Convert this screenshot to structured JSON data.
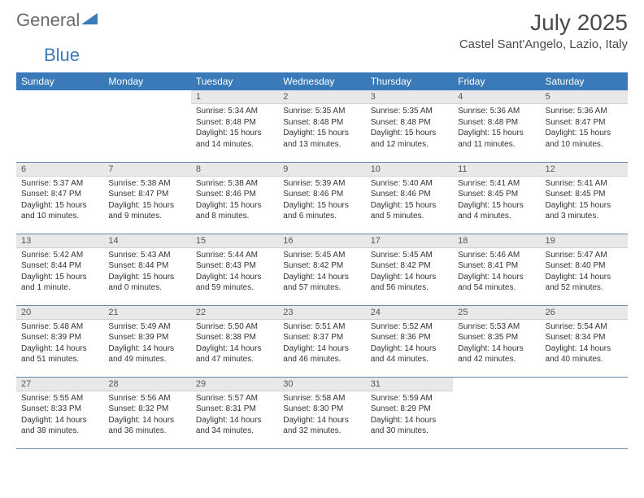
{
  "logo": {
    "text1": "General",
    "text2": "Blue"
  },
  "title": "July 2025",
  "location": "Castel Sant'Angelo, Lazio, Italy",
  "colors": {
    "header_bg": "#3a7ab8",
    "header_fg": "#ffffff",
    "daynum_bg": "#e8e8e8",
    "row_border": "#6b8aa8",
    "text": "#333333",
    "title_color": "#4a4a4a",
    "logo_gray": "#6b6b6b",
    "logo_blue": "#3a7ab8"
  },
  "weekdays": [
    "Sunday",
    "Monday",
    "Tuesday",
    "Wednesday",
    "Thursday",
    "Friday",
    "Saturday"
  ],
  "first_weekday_index": 2,
  "days": [
    {
      "n": 1,
      "sunrise": "5:34 AM",
      "sunset": "8:48 PM",
      "daylight": "15 hours and 14 minutes."
    },
    {
      "n": 2,
      "sunrise": "5:35 AM",
      "sunset": "8:48 PM",
      "daylight": "15 hours and 13 minutes."
    },
    {
      "n": 3,
      "sunrise": "5:35 AM",
      "sunset": "8:48 PM",
      "daylight": "15 hours and 12 minutes."
    },
    {
      "n": 4,
      "sunrise": "5:36 AM",
      "sunset": "8:48 PM",
      "daylight": "15 hours and 11 minutes."
    },
    {
      "n": 5,
      "sunrise": "5:36 AM",
      "sunset": "8:47 PM",
      "daylight": "15 hours and 10 minutes."
    },
    {
      "n": 6,
      "sunrise": "5:37 AM",
      "sunset": "8:47 PM",
      "daylight": "15 hours and 10 minutes."
    },
    {
      "n": 7,
      "sunrise": "5:38 AM",
      "sunset": "8:47 PM",
      "daylight": "15 hours and 9 minutes."
    },
    {
      "n": 8,
      "sunrise": "5:38 AM",
      "sunset": "8:46 PM",
      "daylight": "15 hours and 8 minutes."
    },
    {
      "n": 9,
      "sunrise": "5:39 AM",
      "sunset": "8:46 PM",
      "daylight": "15 hours and 6 minutes."
    },
    {
      "n": 10,
      "sunrise": "5:40 AM",
      "sunset": "8:46 PM",
      "daylight": "15 hours and 5 minutes."
    },
    {
      "n": 11,
      "sunrise": "5:41 AM",
      "sunset": "8:45 PM",
      "daylight": "15 hours and 4 minutes."
    },
    {
      "n": 12,
      "sunrise": "5:41 AM",
      "sunset": "8:45 PM",
      "daylight": "15 hours and 3 minutes."
    },
    {
      "n": 13,
      "sunrise": "5:42 AM",
      "sunset": "8:44 PM",
      "daylight": "15 hours and 1 minute."
    },
    {
      "n": 14,
      "sunrise": "5:43 AM",
      "sunset": "8:44 PM",
      "daylight": "15 hours and 0 minutes."
    },
    {
      "n": 15,
      "sunrise": "5:44 AM",
      "sunset": "8:43 PM",
      "daylight": "14 hours and 59 minutes."
    },
    {
      "n": 16,
      "sunrise": "5:45 AM",
      "sunset": "8:42 PM",
      "daylight": "14 hours and 57 minutes."
    },
    {
      "n": 17,
      "sunrise": "5:45 AM",
      "sunset": "8:42 PM",
      "daylight": "14 hours and 56 minutes."
    },
    {
      "n": 18,
      "sunrise": "5:46 AM",
      "sunset": "8:41 PM",
      "daylight": "14 hours and 54 minutes."
    },
    {
      "n": 19,
      "sunrise": "5:47 AM",
      "sunset": "8:40 PM",
      "daylight": "14 hours and 52 minutes."
    },
    {
      "n": 20,
      "sunrise": "5:48 AM",
      "sunset": "8:39 PM",
      "daylight": "14 hours and 51 minutes."
    },
    {
      "n": 21,
      "sunrise": "5:49 AM",
      "sunset": "8:39 PM",
      "daylight": "14 hours and 49 minutes."
    },
    {
      "n": 22,
      "sunrise": "5:50 AM",
      "sunset": "8:38 PM",
      "daylight": "14 hours and 47 minutes."
    },
    {
      "n": 23,
      "sunrise": "5:51 AM",
      "sunset": "8:37 PM",
      "daylight": "14 hours and 46 minutes."
    },
    {
      "n": 24,
      "sunrise": "5:52 AM",
      "sunset": "8:36 PM",
      "daylight": "14 hours and 44 minutes."
    },
    {
      "n": 25,
      "sunrise": "5:53 AM",
      "sunset": "8:35 PM",
      "daylight": "14 hours and 42 minutes."
    },
    {
      "n": 26,
      "sunrise": "5:54 AM",
      "sunset": "8:34 PM",
      "daylight": "14 hours and 40 minutes."
    },
    {
      "n": 27,
      "sunrise": "5:55 AM",
      "sunset": "8:33 PM",
      "daylight": "14 hours and 38 minutes."
    },
    {
      "n": 28,
      "sunrise": "5:56 AM",
      "sunset": "8:32 PM",
      "daylight": "14 hours and 36 minutes."
    },
    {
      "n": 29,
      "sunrise": "5:57 AM",
      "sunset": "8:31 PM",
      "daylight": "14 hours and 34 minutes."
    },
    {
      "n": 30,
      "sunrise": "5:58 AM",
      "sunset": "8:30 PM",
      "daylight": "14 hours and 32 minutes."
    },
    {
      "n": 31,
      "sunrise": "5:59 AM",
      "sunset": "8:29 PM",
      "daylight": "14 hours and 30 minutes."
    }
  ],
  "labels": {
    "sunrise": "Sunrise:",
    "sunset": "Sunset:",
    "daylight": "Daylight:"
  }
}
